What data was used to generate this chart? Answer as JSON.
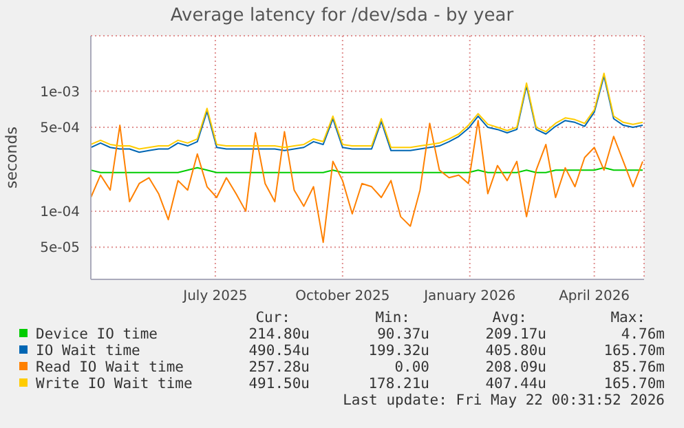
{
  "chart_data": {
    "type": "line",
    "title": "Average latency for /dev/sda - by year",
    "ylabel": "seconds",
    "x": [
      "2025-04-17",
      "2025-04-24",
      "2025-05-01",
      "2025-05-08",
      "2025-05-15",
      "2025-05-22",
      "2025-05-29",
      "2025-06-05",
      "2025-06-12",
      "2025-06-19",
      "2025-06-26",
      "2025-07-03",
      "2025-07-10",
      "2025-07-17",
      "2025-07-24",
      "2025-07-31",
      "2025-08-07",
      "2025-08-14",
      "2025-08-21",
      "2025-08-28",
      "2025-09-04",
      "2025-09-11",
      "2025-09-18",
      "2025-09-25",
      "2025-10-02",
      "2025-10-09",
      "2025-10-16",
      "2025-10-23",
      "2025-10-30",
      "2025-11-06",
      "2025-11-13",
      "2025-11-20",
      "2025-11-27",
      "2025-12-04",
      "2025-12-11",
      "2025-12-18",
      "2025-12-25",
      "2026-01-01",
      "2026-01-08",
      "2026-01-15",
      "2026-01-22",
      "2026-01-29",
      "2026-02-05",
      "2026-02-12",
      "2026-02-19",
      "2026-02-26",
      "2026-03-05",
      "2026-03-12",
      "2026-03-19",
      "2026-03-26",
      "2026-04-02",
      "2026-04-09",
      "2026-04-16",
      "2026-04-23",
      "2026-04-30",
      "2026-05-07",
      "2026-05-14",
      "2026-05-21"
    ],
    "series": [
      {
        "name": "Device IO time",
        "color": "#00cc00",
        "values": [
          0.00022,
          0.00021,
          0.00021,
          0.00021,
          0.00021,
          0.00021,
          0.00021,
          0.00021,
          0.00021,
          0.00021,
          0.00022,
          0.00023,
          0.00022,
          0.00021,
          0.00021,
          0.00021,
          0.00021,
          0.00021,
          0.00021,
          0.00021,
          0.00021,
          0.00021,
          0.00021,
          0.00021,
          0.00021,
          0.00022,
          0.00021,
          0.00021,
          0.00021,
          0.00021,
          0.00021,
          0.00021,
          0.00021,
          0.00021,
          0.00021,
          0.00021,
          0.00021,
          0.00021,
          0.00021,
          0.00021,
          0.00022,
          0.00021,
          0.00021,
          0.00021,
          0.00021,
          0.00022,
          0.00021,
          0.00021,
          0.00022,
          0.00022,
          0.00022,
          0.00022,
          0.00022,
          0.00023,
          0.00022,
          0.00022,
          0.00022,
          0.00022
        ]
      },
      {
        "name": "IO Wait time",
        "color": "#0066b3",
        "values": [
          0.00034,
          0.00037,
          0.00034,
          0.00033,
          0.00033,
          0.00031,
          0.00032,
          0.00033,
          0.00033,
          0.00037,
          0.00035,
          0.00038,
          0.00068,
          0.00034,
          0.00033,
          0.00033,
          0.00033,
          0.00033,
          0.00033,
          0.00033,
          0.00032,
          0.00033,
          0.00034,
          0.00038,
          0.00036,
          0.00059,
          0.00034,
          0.00033,
          0.00033,
          0.00033,
          0.00056,
          0.00032,
          0.00032,
          0.00032,
          0.00033,
          0.00034,
          0.00035,
          0.00038,
          0.00042,
          0.00049,
          0.00062,
          0.0005,
          0.00048,
          0.00045,
          0.00048,
          0.00111,
          0.00048,
          0.00044,
          0.00051,
          0.00057,
          0.00055,
          0.00051,
          0.00067,
          0.00134,
          0.00059,
          0.00052,
          0.0005,
          0.00052
        ]
      },
      {
        "name": "Read IO Wait time",
        "color": "#ff8000",
        "values": [
          0.00013,
          0.0002,
          0.00015,
          0.00052,
          0.00012,
          0.00017,
          0.00019,
          0.00014,
          8.5e-05,
          0.00018,
          0.00015,
          0.0003,
          0.00016,
          0.00013,
          0.00019,
          0.00014,
          0.0001,
          0.00045,
          0.00017,
          0.00012,
          0.00046,
          0.00015,
          0.00011,
          0.00016,
          5.5e-05,
          0.00026,
          0.00018,
          9.5e-05,
          0.00017,
          0.00016,
          0.00013,
          0.00018,
          9e-05,
          7.5e-05,
          0.00015,
          0.00054,
          0.00022,
          0.00019,
          0.0002,
          0.00017,
          0.00057,
          0.00014,
          0.00024,
          0.00018,
          0.00026,
          9e-05,
          0.00022,
          0.00036,
          0.00013,
          0.00023,
          0.00016,
          0.00028,
          0.00034,
          0.00022,
          0.00042,
          0.00026,
          0.00016,
          0.00026
        ]
      },
      {
        "name": "Write IO Wait time",
        "color": "#ffcc00",
        "values": [
          0.00036,
          0.00039,
          0.00036,
          0.00035,
          0.00035,
          0.00033,
          0.00034,
          0.00035,
          0.00035,
          0.00039,
          0.00037,
          0.0004,
          0.00072,
          0.00036,
          0.00035,
          0.00035,
          0.00035,
          0.00035,
          0.00035,
          0.00035,
          0.00034,
          0.00035,
          0.00036,
          0.0004,
          0.00038,
          0.00062,
          0.00036,
          0.00035,
          0.00035,
          0.00035,
          0.00059,
          0.00034,
          0.00034,
          0.00034,
          0.00035,
          0.00036,
          0.00037,
          0.0004,
          0.00044,
          0.00052,
          0.00065,
          0.00053,
          0.0005,
          0.00047,
          0.0005,
          0.00117,
          0.0005,
          0.00046,
          0.00054,
          0.0006,
          0.00058,
          0.00054,
          0.0007,
          0.00141,
          0.00062,
          0.00055,
          0.00053,
          0.00055
        ]
      }
    ],
    "xlim": [
      "2025-04-17",
      "2026-05-22"
    ],
    "xticks": [
      {
        "value": "2025-07-16",
        "label": "July 2025"
      },
      {
        "value": "2025-10-16",
        "label": "October 2025"
      },
      {
        "value": "2026-01-16",
        "label": "January 2026"
      },
      {
        "value": "2026-04-16",
        "label": "April 2026"
      }
    ],
    "ylim": [
      2.7e-05,
      0.0029
    ],
    "yticks": [
      {
        "value": 5e-05,
        "label": "5e-05"
      },
      {
        "value": 0.0001,
        "label": "1e-04"
      },
      {
        "value": 0.0005,
        "label": "5e-04"
      },
      {
        "value": 0.001,
        "label": "1e-03"
      }
    ],
    "log": "y",
    "grid": true,
    "legend": "bottom",
    "marker": "none",
    "line_style": "solid",
    "annotations": [
      "Cur:",
      "Min:",
      "Avg:",
      "Max:",
      "214.80u",
      "90.37u",
      "209.17u",
      "4.76m",
      "490.54u",
      "199.32u",
      "405.80u",
      "165.70m",
      "257.28u",
      "0.00",
      "208.09u",
      "85.76m",
      "491.50u",
      "178.21u",
      "407.44u",
      "165.70m",
      "Last update: Fri May 22 00:31:52 2026"
    ]
  }
}
